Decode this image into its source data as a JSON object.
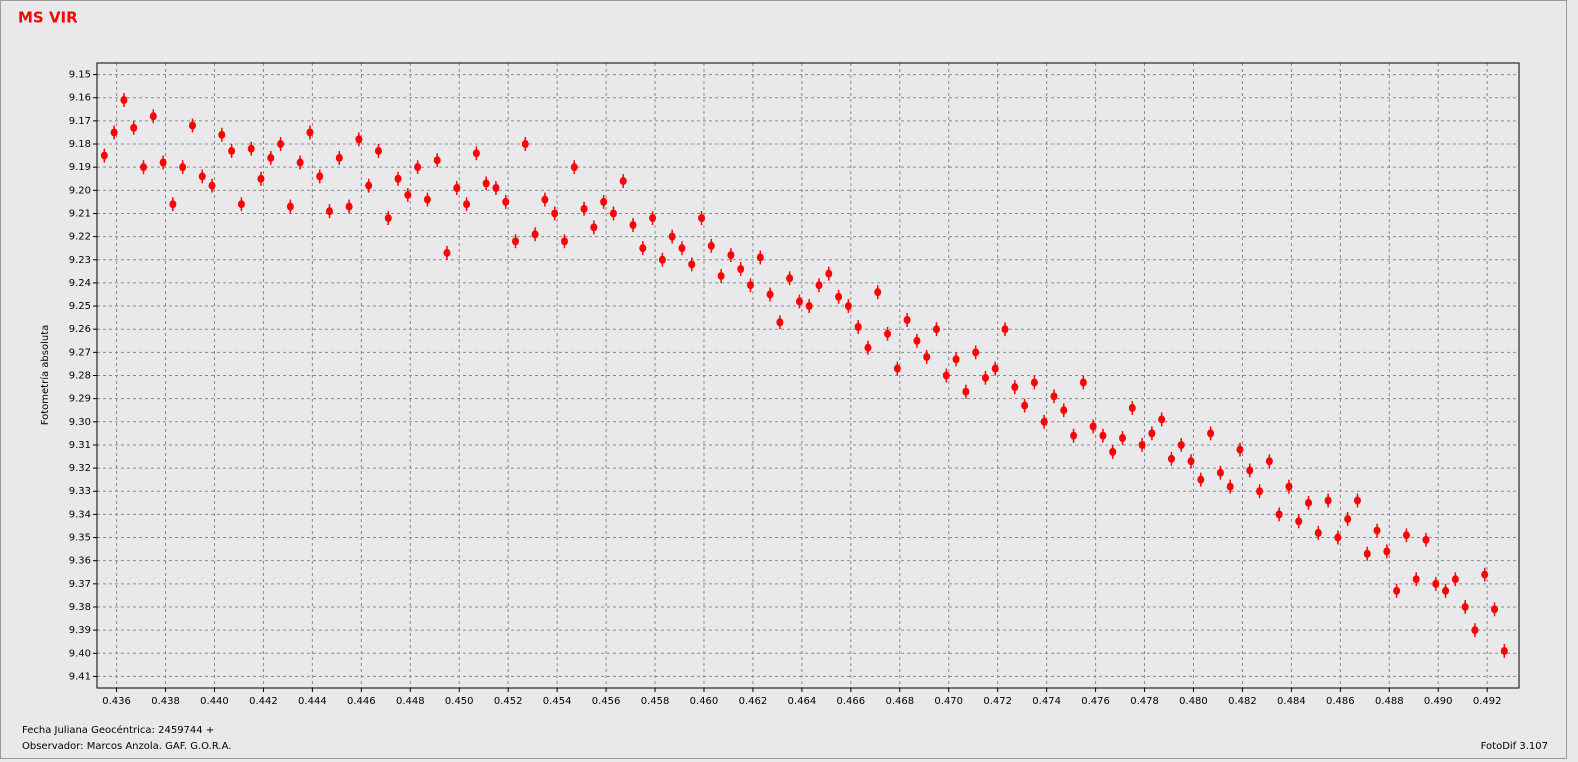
{
  "chart_data": {
    "type": "scatter",
    "title": "MS VIR",
    "ylabel": "Fotometría absoluta",
    "xlabel": "Fecha Juliana Geocéntrica: 2459744 +",
    "observer": "Observador:  Marcos Anzola. GAF. G.O.R.A.",
    "software": "FotoDif 3.107",
    "xlim": [
      0.4352,
      0.4933
    ],
    "ylim": [
      9.145,
      9.415
    ],
    "y_inverted": true,
    "grid": true,
    "xticks": [
      0.436,
      0.438,
      {
        "value": 0.44,
        "label": "0.440"
      },
      0.442,
      0.444,
      0.446,
      0.448,
      {
        "value": 0.45,
        "label": "0.450"
      },
      0.452,
      0.454,
      0.456,
      0.458,
      {
        "value": 0.46,
        "label": "0.460"
      },
      0.462,
      0.464,
      0.466,
      0.468,
      {
        "value": 0.47,
        "label": "0.470"
      },
      0.472,
      0.474,
      0.476,
      0.478,
      {
        "value": 0.48,
        "label": "0.480"
      },
      0.482,
      0.484,
      0.486,
      0.488,
      {
        "value": 0.49,
        "label": "0.490"
      },
      0.492
    ],
    "yticks": [
      9.15,
      9.16,
      9.17,
      9.18,
      9.19,
      {
        "value": 9.2,
        "label": "9.20"
      },
      9.21,
      9.22,
      9.23,
      9.24,
      9.25,
      9.26,
      9.27,
      9.28,
      9.29,
      {
        "value": 9.3,
        "label": "9.30"
      },
      9.31,
      9.32,
      9.33,
      9.34,
      9.35,
      9.36,
      9.37,
      9.38,
      9.39,
      {
        "value": 9.4,
        "label": "9.40"
      },
      9.41
    ],
    "series": [
      {
        "color": "#ff0000",
        "error": 0.003,
        "x": [
          0.4355,
          0.4359,
          0.4363,
          0.4367,
          0.4371,
          0.4375,
          0.4379,
          0.4383,
          0.4387,
          0.4391,
          0.4395,
          0.4399,
          0.4403,
          0.4407,
          0.4411,
          0.4415,
          0.4419,
          0.4423,
          0.4427,
          0.4431,
          0.4435,
          0.4439,
          0.4443,
          0.4447,
          0.4451,
          0.4455,
          0.4459,
          0.4463,
          0.4467,
          0.4471,
          0.4475,
          0.4479,
          0.4483,
          0.4487,
          0.4491,
          0.4495,
          0.4499,
          0.4503,
          0.4507,
          0.4511,
          0.4515,
          0.4519,
          0.4523,
          0.4527,
          0.4531,
          0.4535,
          0.4539,
          0.4543,
          0.4547,
          0.4551,
          0.4555,
          0.4559,
          0.4563,
          0.4567,
          0.4571,
          0.4575,
          0.4579,
          0.4583,
          0.4587,
          0.4591,
          0.4595,
          0.4599,
          0.4603,
          0.4607,
          0.4611,
          0.4615,
          0.4619,
          0.4623,
          0.4627,
          0.4631,
          0.4635,
          0.4639,
          0.4643,
          0.4647,
          0.4651,
          0.4655,
          0.4659,
          0.4663,
          0.4667,
          0.4671,
          0.4675,
          0.4679,
          0.4683,
          0.4687,
          0.4691,
          0.4695,
          0.4699,
          0.4703,
          0.4707,
          0.4711,
          0.4715,
          0.4719,
          0.4723,
          0.4727,
          0.4731,
          0.4735,
          0.4739,
          0.4743,
          0.4747,
          0.4751,
          0.4755,
          0.4759,
          0.4763,
          0.4767,
          0.4771,
          0.4775,
          0.4779,
          0.4783,
          0.4787,
          0.4791,
          0.4795,
          0.4799,
          0.4803,
          0.4807,
          0.4811,
          0.4815,
          0.4819,
          0.4823,
          0.4827,
          0.4831,
          0.4835,
          0.4839,
          0.4843,
          0.4847,
          0.4851,
          0.4855,
          0.4859,
          0.4863,
          0.4867,
          0.4871,
          0.4875,
          0.4879,
          0.4883,
          0.4887,
          0.4891,
          0.4895,
          0.4899,
          0.4903,
          0.4907,
          0.4911,
          0.4915,
          0.4919,
          0.4923,
          0.4927
        ],
        "y": [
          9.185,
          9.175,
          9.161,
          9.173,
          9.19,
          9.168,
          9.188,
          9.206,
          9.19,
          9.172,
          9.194,
          9.198,
          9.176,
          9.183,
          9.206,
          9.182,
          9.195,
          9.186,
          9.18,
          9.207,
          9.188,
          9.175,
          9.194,
          9.209,
          9.186,
          9.207,
          9.178,
          9.198,
          9.183,
          9.212,
          9.195,
          9.202,
          9.19,
          9.204,
          9.187,
          9.227,
          9.199,
          9.206,
          9.184,
          9.197,
          9.199,
          9.205,
          9.222,
          9.18,
          9.219,
          9.204,
          9.21,
          9.222,
          9.19,
          9.208,
          9.216,
          9.205,
          9.21,
          9.196,
          9.215,
          9.225,
          9.212,
          9.23,
          9.22,
          9.225,
          9.232,
          9.212,
          9.224,
          9.237,
          9.228,
          9.234,
          9.241,
          9.229,
          9.245,
          9.257,
          9.238,
          9.248,
          9.25,
          9.241,
          9.236,
          9.246,
          9.25,
          9.259,
          9.268,
          9.244,
          9.262,
          9.277,
          9.256,
          9.265,
          9.272,
          9.26,
          9.28,
          9.273,
          9.287,
          9.27,
          9.281,
          9.277,
          9.26,
          9.285,
          9.293,
          9.283,
          9.3,
          9.289,
          9.295,
          9.306,
          9.283,
          9.302,
          9.306,
          9.313,
          9.307,
          9.294,
          9.31,
          9.305,
          9.299,
          9.316,
          9.31,
          9.317,
          9.325,
          9.305,
          9.322,
          9.328,
          9.312,
          9.321,
          9.33,
          9.317,
          9.34,
          9.328,
          9.343,
          9.335,
          9.348,
          9.334,
          9.35,
          9.342,
          9.334,
          9.357,
          9.347,
          9.356,
          9.373,
          9.349,
          9.368,
          9.351,
          9.37,
          9.373,
          9.368,
          9.38,
          9.39,
          9.366,
          9.381,
          9.399
        ]
      }
    ]
  }
}
